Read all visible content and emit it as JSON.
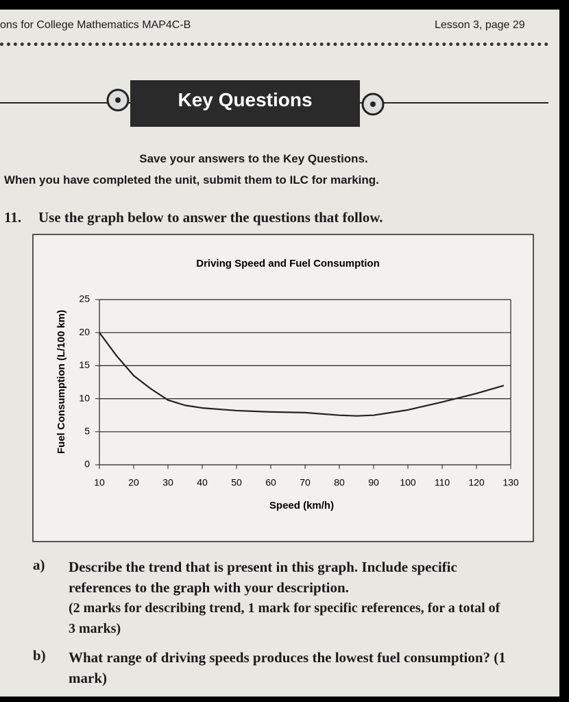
{
  "header": {
    "course": "ons for College Mathematics MAP4C-B",
    "page": "Lesson 3, page 29"
  },
  "banner": "Key Questions",
  "instructions": [
    "Save your answers to the Key Questions.",
    "When you have completed the unit, submit them to ILC for marking."
  ],
  "question": {
    "number": "11.",
    "text": "Use the graph below to answer the questions that follow."
  },
  "chart_data": {
    "type": "line",
    "title": "Driving Speed and Fuel Consumption",
    "x_label": "Speed (km/h)",
    "y_label": "Fuel Consumption (L/100 km)",
    "x": [
      10,
      15,
      20,
      25,
      30,
      35,
      40,
      50,
      60,
      70,
      80,
      85,
      90,
      100,
      110,
      120,
      128
    ],
    "values": [
      20,
      16.5,
      13.5,
      11.5,
      9.8,
      9,
      8.6,
      8.2,
      8,
      7.9,
      7.5,
      7.4,
      7.5,
      8.3,
      9.5,
      10.8,
      12
    ],
    "color": "#222222",
    "xlim": [
      10,
      130
    ],
    "xticks": [
      10,
      20,
      30,
      40,
      50,
      60,
      70,
      80,
      90,
      100,
      110,
      120,
      130
    ],
    "ylim": [
      0,
      25
    ],
    "yticks": [
      0,
      5,
      10,
      15,
      20,
      25
    ],
    "grid": true
  },
  "parts": [
    {
      "label": "a)",
      "text": "Describe the trend that is present in this graph. Include specific references to the graph with your description.",
      "marks": "(2 marks for describing trend, 1 mark for specific references, for a total of 3 marks)"
    },
    {
      "label": "b)",
      "text": "What range of driving speeds produces the lowest fuel consumption? (1 mark)"
    }
  ]
}
